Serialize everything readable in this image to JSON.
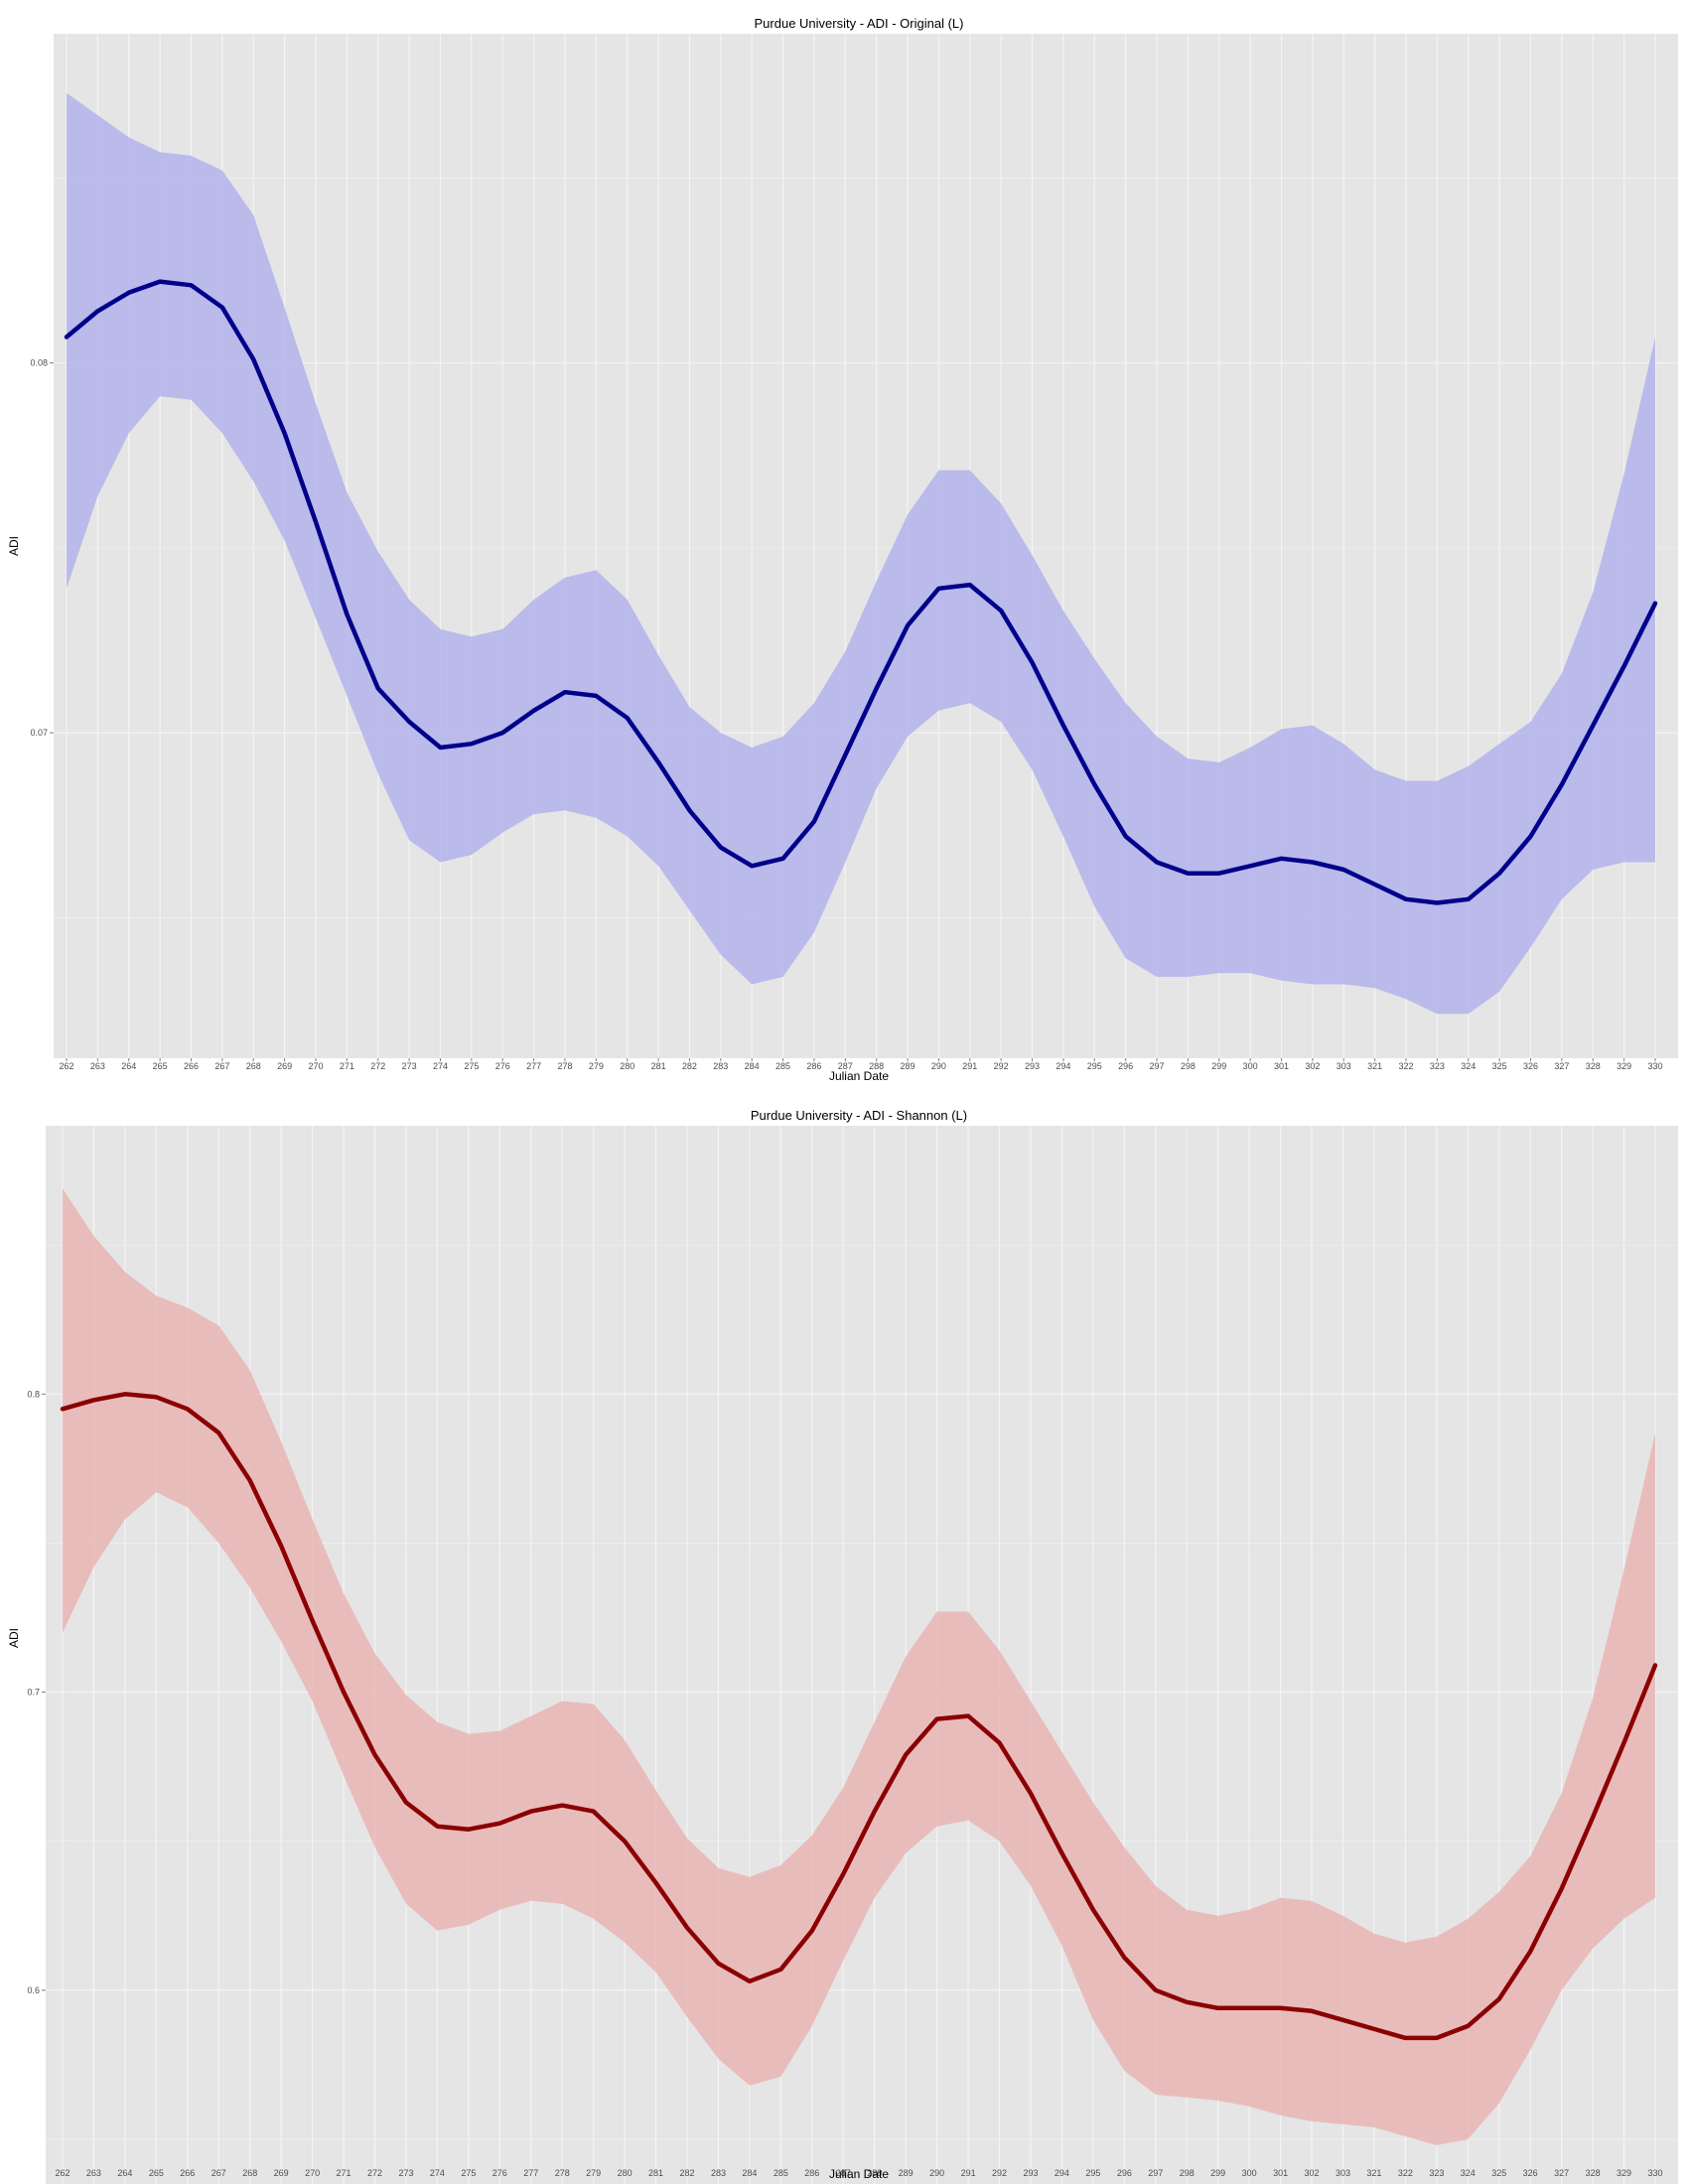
{
  "colors": {
    "panel_bg": "#e5e5e5",
    "grid": "#f4f4f4",
    "page_bg": "#ffffff",
    "tick_text": "#4d4d4d",
    "tick_mark": "#7f7f7f"
  },
  "chart_data": [
    {
      "type": "line",
      "title": "Purdue University - ADI - Original (L)",
      "xlabel": "Julian Date",
      "ylabel": "ADI",
      "grid": true,
      "ylim": [
        0.0612,
        0.0889
      ],
      "yticks": [
        0.07,
        0.08
      ],
      "ytick_labels": [
        "0.07",
        "0.08"
      ],
      "categories": [
        "262",
        "263",
        "264",
        "265",
        "266",
        "267",
        "268",
        "269",
        "270",
        "271",
        "272",
        "273",
        "274",
        "275",
        "276",
        "277",
        "278",
        "279",
        "280",
        "281",
        "282",
        "283",
        "284",
        "285",
        "286",
        "287",
        "288",
        "289",
        "290",
        "291",
        "292",
        "293",
        "294",
        "295",
        "296",
        "297",
        "298",
        "299",
        "300",
        "301",
        "302",
        "303",
        "321",
        "322",
        "323",
        "324",
        "325",
        "326",
        "327",
        "328",
        "329",
        "330"
      ],
      "line_color": "#00008b",
      "band_color": "#b3b3ec",
      "series": [
        {
          "role": "mean",
          "values": [
            0.0807,
            0.0814,
            0.0819,
            0.0822,
            0.0821,
            0.0815,
            0.0801,
            0.0781,
            0.0757,
            0.0732,
            0.0712,
            0.0703,
            0.0696,
            0.0697,
            0.07,
            0.0706,
            0.0711,
            0.071,
            0.0704,
            0.0692,
            0.0679,
            0.0669,
            0.0664,
            0.0666,
            0.0676,
            0.0694,
            0.0712,
            0.0729,
            0.0739,
            0.074,
            0.0733,
            0.0719,
            0.0702,
            0.0686,
            0.0672,
            0.0665,
            0.0662,
            0.0662,
            0.0664,
            0.0666,
            0.0665,
            0.0663,
            0.0659,
            0.0655,
            0.0654,
            0.0655,
            0.0662,
            0.0672,
            0.0686,
            0.0702,
            0.0718,
            0.0735
          ]
        },
        {
          "role": "upper",
          "values": [
            0.0873,
            0.0867,
            0.0861,
            0.0857,
            0.0856,
            0.0852,
            0.084,
            0.0815,
            0.0789,
            0.0765,
            0.0749,
            0.0736,
            0.0728,
            0.0726,
            0.0728,
            0.0736,
            0.0742,
            0.0744,
            0.0736,
            0.0721,
            0.0707,
            0.07,
            0.0696,
            0.0699,
            0.0708,
            0.0722,
            0.0741,
            0.0759,
            0.0771,
            0.0771,
            0.0762,
            0.0748,
            0.0733,
            0.072,
            0.0708,
            0.0699,
            0.0693,
            0.0692,
            0.0696,
            0.0701,
            0.0702,
            0.0697,
            0.069,
            0.0687,
            0.0687,
            0.0691,
            0.0697,
            0.0703,
            0.0716,
            0.0738,
            0.077,
            0.0807
          ]
        },
        {
          "role": "lower",
          "values": [
            0.0739,
            0.0764,
            0.0781,
            0.0791,
            0.079,
            0.0781,
            0.0768,
            0.0752,
            0.0731,
            0.071,
            0.0689,
            0.0671,
            0.0665,
            0.0667,
            0.0673,
            0.0678,
            0.0679,
            0.0677,
            0.0672,
            0.0664,
            0.0652,
            0.064,
            0.0632,
            0.0634,
            0.0646,
            0.0665,
            0.0685,
            0.0699,
            0.0706,
            0.0708,
            0.0703,
            0.069,
            0.0672,
            0.0653,
            0.0639,
            0.0634,
            0.0634,
            0.0635,
            0.0635,
            0.0633,
            0.0632,
            0.0632,
            0.0631,
            0.0628,
            0.0624,
            0.0624,
            0.063,
            0.0642,
            0.0655,
            0.0663,
            0.0665,
            0.0665
          ]
        }
      ]
    },
    {
      "type": "line",
      "title": "Purdue University - ADI - Shannon (L)",
      "xlabel": "Julian Date",
      "ylabel": "ADI",
      "grid": true,
      "ylim": [
        0.535,
        0.89
      ],
      "yticks": [
        0.6,
        0.7,
        0.8
      ],
      "ytick_labels": [
        "0.6",
        "0.7",
        "0.8"
      ],
      "categories": [
        "262",
        "263",
        "264",
        "265",
        "266",
        "267",
        "268",
        "269",
        "270",
        "271",
        "272",
        "273",
        "274",
        "275",
        "276",
        "277",
        "278",
        "279",
        "280",
        "281",
        "282",
        "283",
        "284",
        "285",
        "286",
        "287",
        "288",
        "289",
        "290",
        "291",
        "292",
        "293",
        "294",
        "295",
        "296",
        "297",
        "298",
        "299",
        "300",
        "301",
        "302",
        "303",
        "321",
        "322",
        "323",
        "324",
        "325",
        "326",
        "327",
        "328",
        "329",
        "330"
      ],
      "line_color": "#8b0000",
      "band_color": "#eab5b5",
      "series": [
        {
          "role": "mean",
          "values": [
            0.795,
            0.798,
            0.8,
            0.799,
            0.795,
            0.787,
            0.771,
            0.749,
            0.724,
            0.7,
            0.679,
            0.663,
            0.655,
            0.654,
            0.656,
            0.66,
            0.662,
            0.66,
            0.65,
            0.636,
            0.621,
            0.609,
            0.603,
            0.607,
            0.62,
            0.639,
            0.66,
            0.679,
            0.691,
            0.692,
            0.683,
            0.666,
            0.646,
            0.627,
            0.611,
            0.6,
            0.596,
            0.594,
            0.594,
            0.594,
            0.593,
            0.59,
            0.587,
            0.584,
            0.584,
            0.588,
            0.597,
            0.613,
            0.634,
            0.658,
            0.683,
            0.709
          ]
        },
        {
          "role": "upper",
          "values": [
            0.869,
            0.853,
            0.841,
            0.833,
            0.829,
            0.823,
            0.808,
            0.784,
            0.758,
            0.733,
            0.713,
            0.699,
            0.69,
            0.686,
            0.687,
            0.692,
            0.697,
            0.696,
            0.684,
            0.667,
            0.651,
            0.641,
            0.638,
            0.642,
            0.652,
            0.668,
            0.69,
            0.712,
            0.727,
            0.727,
            0.714,
            0.697,
            0.68,
            0.663,
            0.648,
            0.635,
            0.627,
            0.625,
            0.627,
            0.631,
            0.63,
            0.625,
            0.619,
            0.616,
            0.618,
            0.624,
            0.633,
            0.645,
            0.666,
            0.698,
            0.741,
            0.787
          ]
        },
        {
          "role": "lower",
          "values": [
            0.72,
            0.742,
            0.758,
            0.767,
            0.762,
            0.75,
            0.735,
            0.717,
            0.697,
            0.672,
            0.648,
            0.629,
            0.62,
            0.622,
            0.627,
            0.63,
            0.629,
            0.624,
            0.616,
            0.606,
            0.591,
            0.577,
            0.568,
            0.571,
            0.588,
            0.61,
            0.631,
            0.646,
            0.655,
            0.657,
            0.65,
            0.635,
            0.615,
            0.59,
            0.573,
            0.565,
            0.564,
            0.563,
            0.561,
            0.558,
            0.556,
            0.555,
            0.554,
            0.551,
            0.548,
            0.55,
            0.562,
            0.58,
            0.6,
            0.614,
            0.624,
            0.631
          ]
        }
      ]
    }
  ]
}
